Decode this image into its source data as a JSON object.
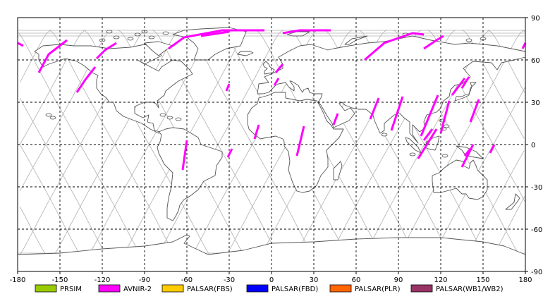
{
  "map": {
    "x_ticks": [
      -180,
      -150,
      -120,
      -90,
      -60,
      -30,
      0,
      30,
      60,
      90,
      120,
      150,
      180
    ],
    "y_ticks": [
      90,
      60,
      30,
      0,
      -30,
      -60,
      -90
    ],
    "xlim": [
      -180,
      180
    ],
    "ylim": [
      -90,
      90
    ],
    "grid": "dashed",
    "colors": {
      "frame": "#000000",
      "grid": "#000000",
      "coast": "#555555",
      "orbit": "#b0b0b0",
      "land_fill": "#ffffff"
    }
  },
  "legend": [
    {
      "label": "PRSIM",
      "color": "#99cc00"
    },
    {
      "label": "AVNIR-2",
      "color": "#ff00ff"
    },
    {
      "label": "PALSAR(FBS)",
      "color": "#ffcc00"
    },
    {
      "label": "PALSAR(FBD)",
      "color": "#0000ff"
    },
    {
      "label": "PALSAR(PLR)",
      "color": "#ff6600"
    },
    {
      "label": "PALSAR(WB1/WB2)",
      "color": "#993366"
    }
  ],
  "avnir2_segments": [
    [
      [
        -180,
        72
      ],
      [
        -176,
        70
      ]
    ],
    [
      [
        -145,
        74
      ],
      [
        -158,
        64
      ],
      [
        -165,
        51
      ]
    ],
    [
      [
        -110,
        72
      ],
      [
        -118,
        67
      ],
      [
        -124,
        61
      ]
    ],
    [
      [
        -125,
        55
      ],
      [
        -132,
        46
      ],
      [
        -138,
        37
      ]
    ],
    [
      [
        -73,
        68
      ],
      [
        -62,
        76
      ],
      [
        -35,
        81
      ],
      [
        -5,
        81
      ]
    ],
    [
      [
        -50,
        77
      ],
      [
        -30,
        80
      ]
    ],
    [
      [
        8,
        79
      ],
      [
        20,
        81
      ],
      [
        42,
        81
      ]
    ],
    [
      [
        66,
        60
      ],
      [
        80,
        72
      ],
      [
        100,
        79
      ],
      [
        108,
        78
      ]
    ],
    [
      [
        108,
        68
      ],
      [
        117,
        74
      ],
      [
        122,
        77
      ]
    ],
    [
      [
        178,
        68
      ],
      [
        184,
        72
      ]
    ],
    [
      [
        -32,
        38
      ],
      [
        -30,
        43
      ]
    ],
    [
      [
        3,
        51
      ],
      [
        8,
        57
      ]
    ],
    [
      [
        2,
        42
      ],
      [
        5,
        47
      ]
    ],
    [
      [
        -12,
        4
      ],
      [
        -9,
        14
      ]
    ],
    [
      [
        -63,
        -18
      ],
      [
        -60,
        3
      ]
    ],
    [
      [
        -31,
        -9
      ],
      [
        -28,
        -3
      ]
    ],
    [
      [
        18,
        -8
      ],
      [
        23,
        13
      ]
    ],
    [
      [
        44,
        14
      ],
      [
        47,
        22
      ]
    ],
    [
      [
        70,
        18
      ],
      [
        76,
        33
      ]
    ],
    [
      [
        85,
        10
      ],
      [
        93,
        34
      ]
    ],
    [
      [
        106,
        6
      ],
      [
        118,
        35
      ]
    ],
    [
      [
        120,
        8
      ],
      [
        126,
        31
      ]
    ],
    [
      [
        128,
        35
      ],
      [
        137,
        47
      ]
    ],
    [
      [
        135,
        40
      ],
      [
        140,
        48
      ]
    ],
    [
      [
        141,
        16
      ],
      [
        147,
        32
      ]
    ],
    [
      [
        135,
        -16
      ],
      [
        143,
        0
      ]
    ],
    [
      [
        137,
        -8
      ],
      [
        141,
        -3
      ]
    ],
    [
      [
        155,
        -6
      ],
      [
        158,
        0
      ]
    ],
    [
      [
        104,
        -10
      ],
      [
        117,
        11
      ]
    ],
    [
      [
        108,
        3
      ],
      [
        114,
        11
      ]
    ]
  ]
}
